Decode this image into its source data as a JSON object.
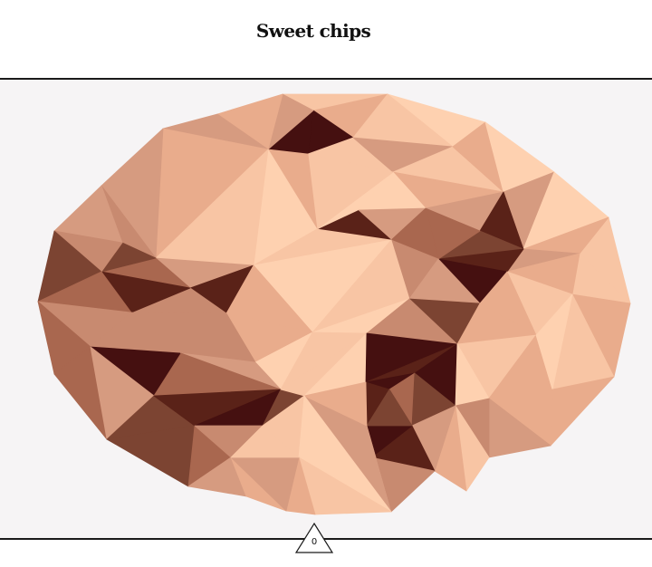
{
  "header": {
    "title": "Sweet chips"
  },
  "counter": {
    "value": "0"
  },
  "icons": {
    "cookie": "cookie-icon",
    "counter": "triangle-counter-icon"
  },
  "palette": [
    "#fed1b0",
    "#f8c5a4",
    "#e9ac8c",
    "#d69b80",
    "#c88a70",
    "#a9674f",
    "#7c4432",
    "#5a2218",
    "#451010"
  ]
}
